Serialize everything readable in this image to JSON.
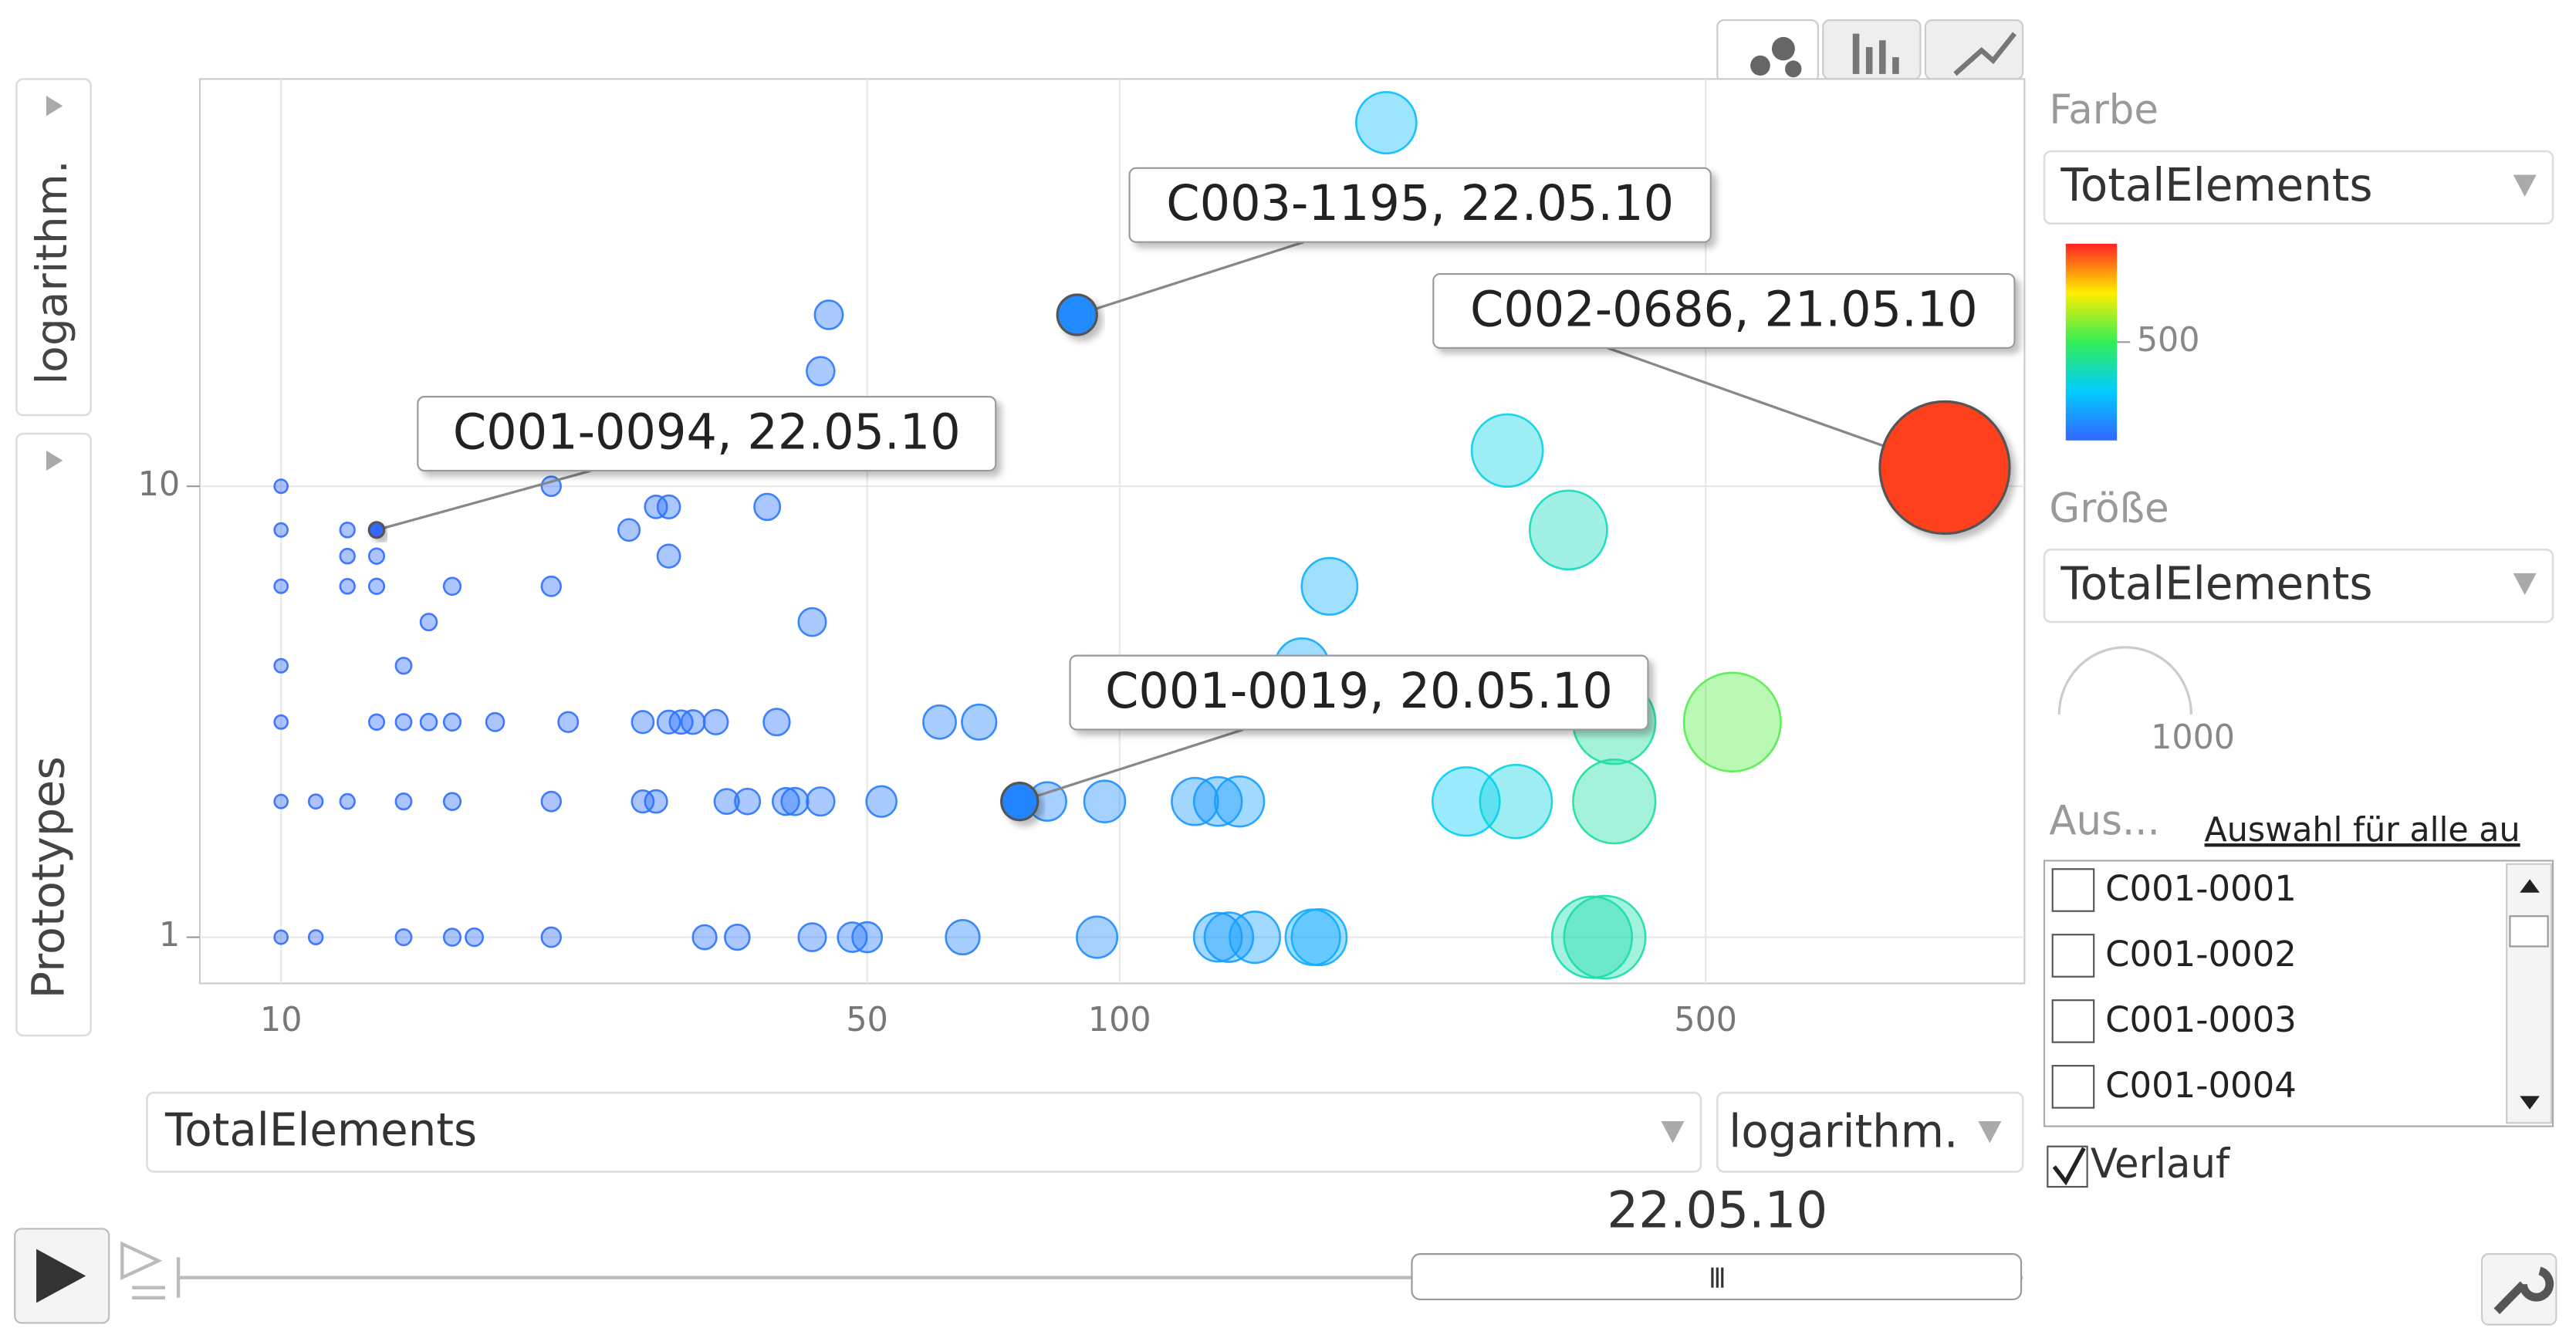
{
  "chart_data": {
    "type": "bubble",
    "x_variable": "TotalElements",
    "x_scale": "logarithm.",
    "y_variable": "Prototypes",
    "y_scale": "logarithm.",
    "log_x": true,
    "log_y": true,
    "grid": true,
    "xlim": [
      8,
      1200
    ],
    "xticks": [
      10,
      50,
      100,
      500
    ],
    "ylim": [
      0.79,
      80
    ],
    "yticks": [
      1,
      10
    ],
    "color_scale": [
      "#3366ff",
      "#00ccff",
      "#33ee55",
      "#ffee00",
      "#ff2222"
    ],
    "points": {
      "x": [
        10,
        11,
        14,
        16,
        17,
        21,
        32,
        35,
        43,
        48,
        50,
        65,
        94,
        131,
        135,
        145,
        170,
        173,
        366,
        379,
        10,
        11,
        12,
        14,
        16,
        21,
        27,
        28,
        34,
        36,
        40,
        41,
        44,
        52,
        82,
        96,
        123,
        131,
        139,
        259,
        297,
        389,
        10,
        13,
        14,
        15,
        16,
        18,
        22,
        27,
        29,
        30,
        31,
        33,
        39,
        61,
        68,
        389,
        538,
        10,
        14,
        165,
        15,
        43,
        10,
        12,
        13,
        16,
        21,
        178,
        12,
        13,
        29,
        10,
        12,
        26,
        343,
        28,
        29,
        38,
        10,
        21,
        290,
        44,
        45,
        208
      ],
      "y": [
        1,
        1,
        1,
        1,
        1,
        1,
        1,
        1,
        1,
        1,
        1,
        1,
        1,
        1,
        1,
        1,
        1,
        1,
        1,
        1,
        2,
        2,
        2,
        2,
        2,
        2,
        2,
        2,
        2,
        2,
        2,
        2,
        2,
        2,
        2,
        2,
        2,
        2,
        2,
        2,
        2,
        2,
        3,
        3,
        3,
        3,
        3,
        3,
        3,
        3,
        3,
        3,
        3,
        3,
        3,
        3,
        3,
        3,
        3,
        4,
        4,
        4,
        5,
        5,
        6,
        6,
        6,
        6,
        6,
        6,
        7,
        7,
        7,
        8,
        8,
        8,
        8,
        9,
        9,
        9,
        10,
        10,
        12,
        18,
        24,
        64
      ]
    },
    "highlighted": [
      {
        "label": "C003-1195, 22.05.10",
        "x": 89,
        "y": 24
      },
      {
        "label": "C002-0686, 21.05.10",
        "x": 964,
        "y": 11
      },
      {
        "label": "C001-0094, 22.05.10",
        "x": 13,
        "y": 8
      },
      {
        "label": "C001-0019, 20.05.10",
        "x": 76,
        "y": 2
      }
    ],
    "trail": {
      "x": [
        76,
        389
      ],
      "y": [
        2,
        2
      ]
    },
    "color_legend": {
      "title": "Farbe",
      "variable": "TotalElements",
      "lim": [
        0,
        1000
      ],
      "ticks": [
        500
      ]
    },
    "size_legend": {
      "title": "Größe",
      "variable": "TotalElements",
      "value": 1000
    }
  },
  "ui": {
    "select_label": "Aus...",
    "select_all_link": "Auswahl für alle au",
    "items": [
      "C001-0001",
      "C001-0002",
      "C001-0003",
      "C001-0004"
    ],
    "trail_label": "Verlauf",
    "date": "22.05.10"
  }
}
